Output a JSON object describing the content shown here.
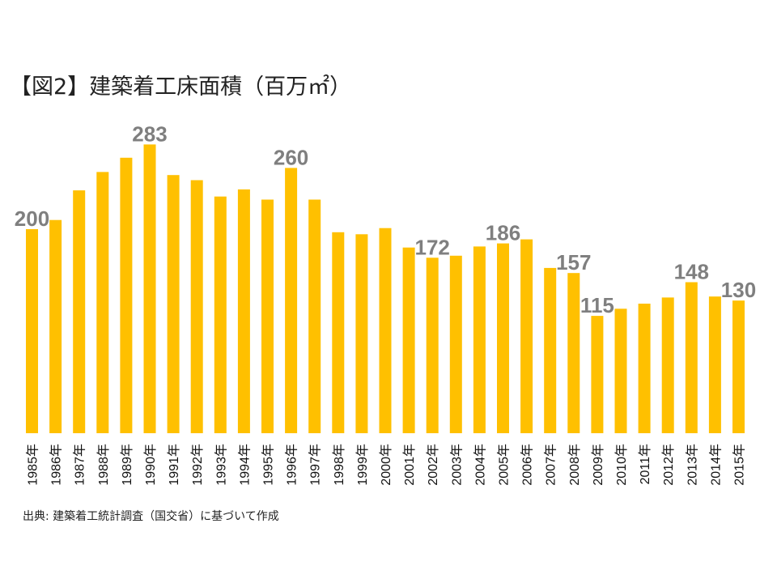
{
  "chart_data": {
    "type": "bar",
    "title": "【図2】建築着工床面積（百万㎡）",
    "categories": [
      "1985年",
      "1986年",
      "1987年",
      "1988年",
      "1989年",
      "1990年",
      "1991年",
      "1992年",
      "1993年",
      "1994年",
      "1995年",
      "1996年",
      "1997年",
      "1998年",
      "1999年",
      "2000年",
      "2001年",
      "2002年",
      "2003年",
      "2004年",
      "2005年",
      "2006年",
      "2007年",
      "2008年",
      "2009年",
      "2010年",
      "2011年",
      "2012年",
      "2013年",
      "2014年",
      "2015年"
    ],
    "values": [
      200,
      209,
      238,
      256,
      270,
      283,
      253,
      248,
      232,
      239,
      229,
      260,
      229,
      197,
      195,
      201,
      182,
      172,
      174,
      183,
      186,
      190,
      162,
      157,
      115,
      122,
      127,
      133,
      148,
      134,
      130
    ],
    "labeled_indices": [
      0,
      5,
      11,
      17,
      20,
      23,
      24,
      28,
      30
    ],
    "bar_color": "#FFC000",
    "data_label_color": "#7F7F7F",
    "grid": false,
    "show_legend": false
  },
  "source": "出典: 建築着工統計調査（国交省）に基づいて作成"
}
